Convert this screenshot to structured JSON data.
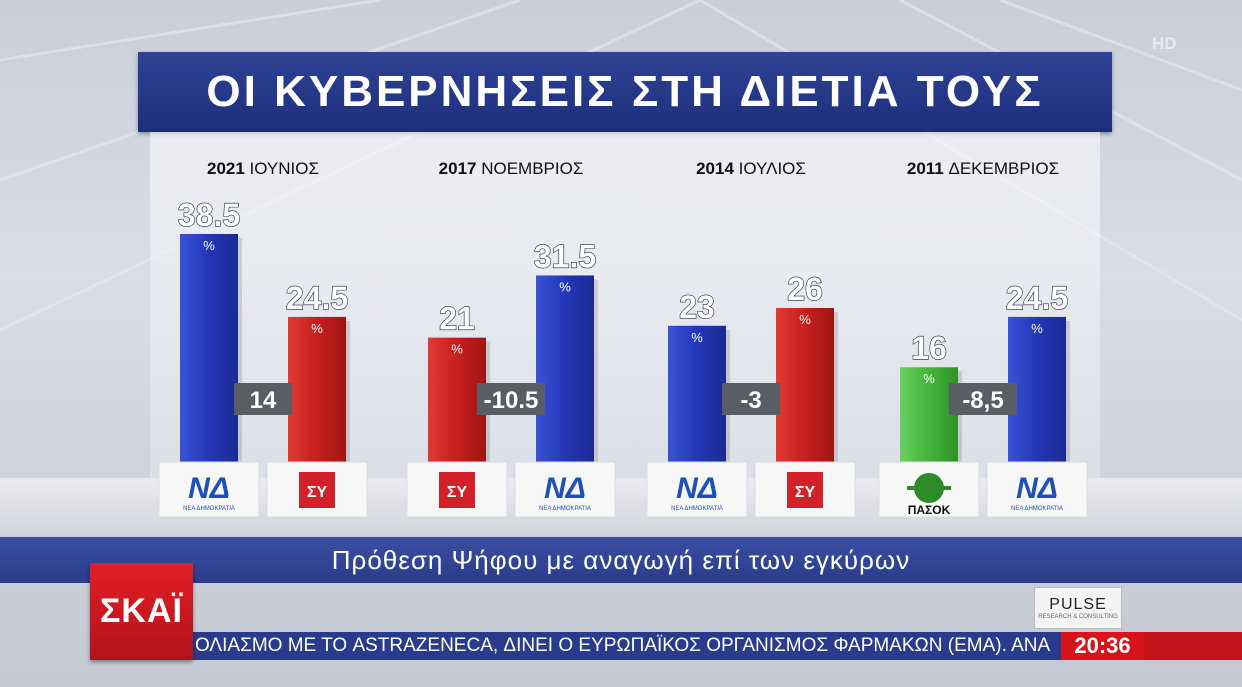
{
  "hd_label": "HD",
  "title": "ΟΙ ΚΥΒΕΡΝΗΣΕΙΣ ΣΤΗ ΔΙΕΤΙΑ ΤΟΥΣ",
  "subtitle": "Πρόθεση Ψήφου με αναγωγή επί των εγκύρων",
  "channel_logo": "ΣΚΑΪ",
  "pulse_logo": "PULSE",
  "pulse_tagline": "RESEARCH & CONSULTING",
  "ticker_text": "ΟΛΙΑΣΜΟ ΜΕ ΤΟ ASTRAZENECA, ΔΙΝΕΙ Ο ΕΥΡΩΠΑΪΚΟΣ ΟΡΓΑΝΙΣΜΟΣ ΦΑΡΜΑΚΩΝ (ΕΜΑ).   ΑΝΑ",
  "clock": "20:36",
  "colors": {
    "nd": "#2337b8",
    "syriza": "#c81e1e",
    "pasok": "#43b43a",
    "title": "#1d2e7c"
  },
  "chart_data": {
    "type": "bar",
    "unit": "%",
    "ylim": [
      0,
      40
    ],
    "groups": [
      {
        "year": "2021",
        "month": "ΙΟΥΝΙΟΣ",
        "diff": "14",
        "bars": [
          {
            "party": "nd",
            "value": 38.5,
            "label": "38.5"
          },
          {
            "party": "syriza",
            "value": 24.5,
            "label": "24.5"
          }
        ]
      },
      {
        "year": "2017",
        "month": "ΝΟΕΜΒΡΙΟΣ",
        "diff": "-10.5",
        "bars": [
          {
            "party": "syriza",
            "value": 21,
            "label": "21"
          },
          {
            "party": "nd",
            "value": 31.5,
            "label": "31.5"
          }
        ]
      },
      {
        "year": "2014",
        "month": "ΙΟΥΛΙΟΣ",
        "diff": "-3",
        "bars": [
          {
            "party": "nd",
            "value": 23,
            "label": "23"
          },
          {
            "party": "syriza",
            "value": 26,
            "label": "26"
          }
        ]
      },
      {
        "year": "2011",
        "month": "ΔΕΚΕΜΒΡΙΟΣ",
        "diff": "-8,5",
        "bars": [
          {
            "party": "pasok",
            "value": 16,
            "label": "16"
          },
          {
            "party": "nd",
            "value": 24.5,
            "label": "24.5"
          }
        ]
      }
    ],
    "party_logos": {
      "nd": {
        "mark": "ΝΔ",
        "caption": "ΝΕΑ ΔΗΜΟΚΡΑΤΙΑ"
      },
      "syriza": {
        "mark": "ΣΥ"
      },
      "pasok": {
        "mark": "ΠΑΣΟΚ"
      }
    }
  }
}
